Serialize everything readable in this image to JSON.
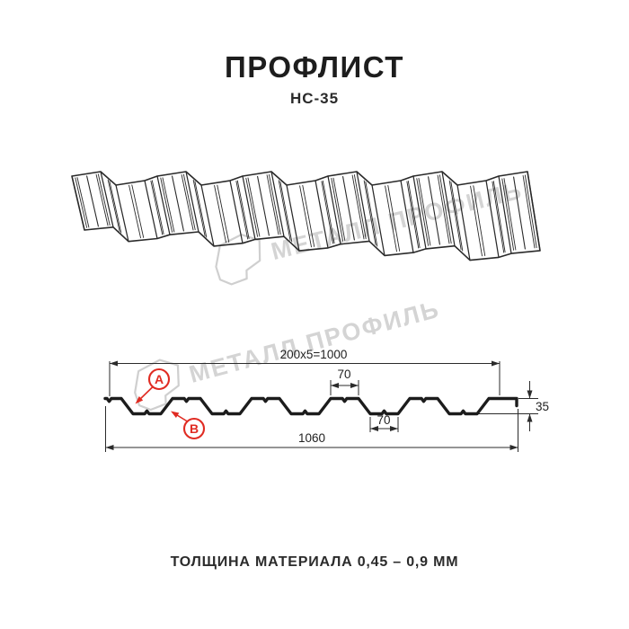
{
  "header": {
    "title": "ПРОФЛИСТ",
    "subtitle": "НС-35"
  },
  "footer": {
    "text": "ТОЛЩИНА МАТЕРИАЛА 0,45 – 0,9 ММ"
  },
  "watermark": {
    "text": "МЕТАЛЛ ПРОФИЛЬ"
  },
  "cross_section": {
    "dimensions": {
      "coverage": "200x5=1000",
      "top_flange": "70",
      "bottom_flange": "70",
      "height": "35",
      "overall_width": "1060"
    },
    "callouts": {
      "a": "A",
      "b": "B"
    }
  },
  "colors": {
    "accent_red": "#e02b22",
    "line": "#2a2a2a",
    "watermark_gray": "#d4d4d4"
  }
}
